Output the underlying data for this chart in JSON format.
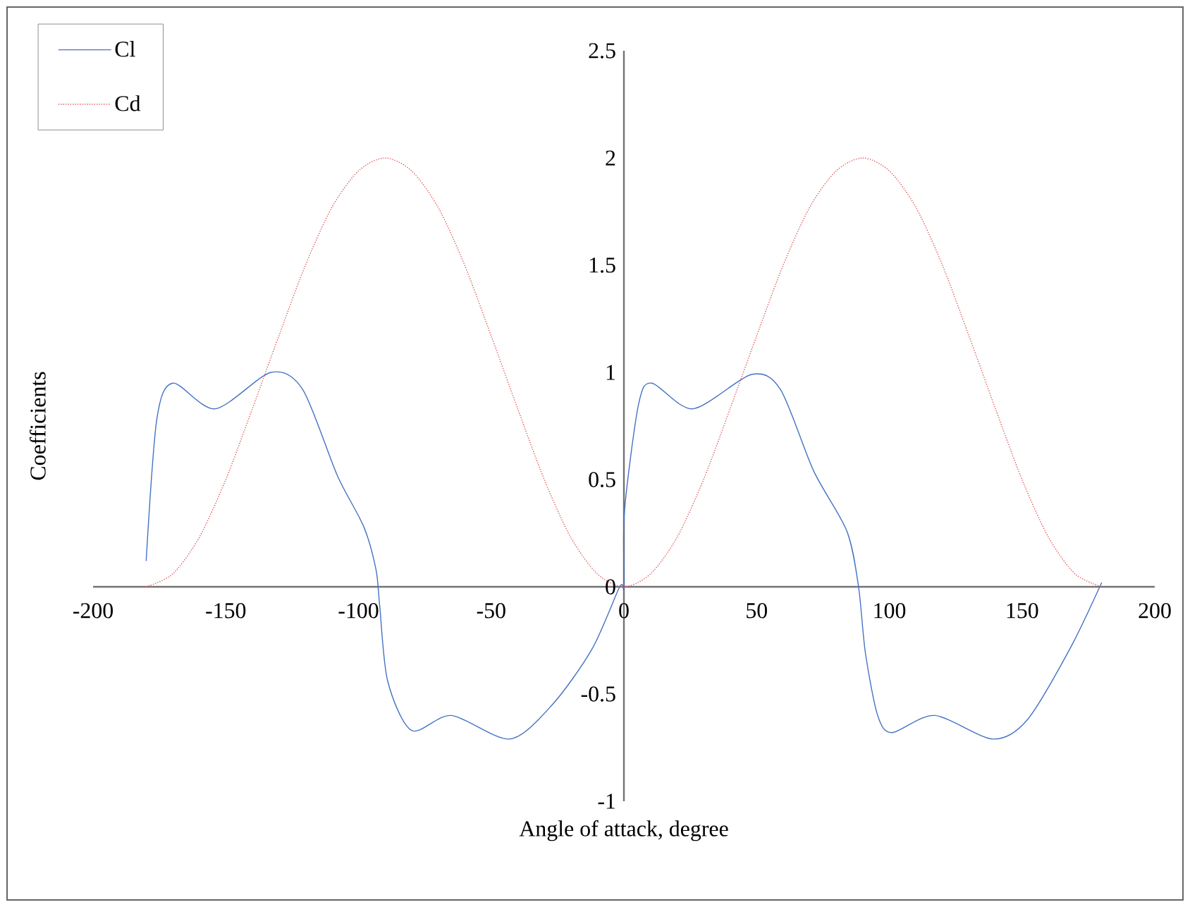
{
  "chart_data": {
    "type": "line",
    "xlabel": "Angle of attack, degree",
    "ylabel": "Coefficients",
    "xlim": [
      -200,
      200
    ],
    "ylim": [
      -1,
      2.5
    ],
    "xticks": [
      -200,
      -150,
      -100,
      -50,
      0,
      50,
      100,
      150,
      200
    ],
    "yticks": [
      -1,
      -0.5,
      0,
      0.5,
      1,
      1.5,
      2,
      2.5
    ],
    "legend": "top left",
    "series": [
      {
        "name": "Cl",
        "color": "#4472c4",
        "line_style": "solid",
        "x": [
          -180,
          -176,
          -170,
          -154,
          -133,
          -121,
          -108,
          -98,
          -93.4,
          -92,
          -89,
          -80,
          -65,
          -43,
          -27,
          -12,
          -1.6,
          0,
          0.2,
          5.5,
          10.5,
          26,
          48,
          59,
          71.5,
          84,
          88.4,
          91,
          95.6,
          101,
          117,
          139,
          152,
          168,
          180
        ],
        "values": [
          0.12,
          0.78,
          0.95,
          0.83,
          1.0,
          0.92,
          0.52,
          0.28,
          0.08,
          -0.09,
          -0.44,
          -0.67,
          -0.6,
          -0.71,
          -0.55,
          -0.29,
          0,
          0,
          0.35,
          0.85,
          0.95,
          0.83,
          0.99,
          0.92,
          0.54,
          0.26,
          0,
          -0.31,
          -0.6,
          -0.68,
          -0.6,
          -0.71,
          -0.62,
          -0.29,
          0.02
        ]
      },
      {
        "name": "Cd",
        "color": "#e05a5a",
        "line_style": "dotted",
        "x": [
          -180,
          -170,
          -160,
          -150,
          -140,
          -130,
          -120,
          -110,
          -100,
          -90,
          -80,
          -70,
          -60,
          -50,
          -40,
          -30,
          -20,
          -10,
          0,
          10,
          20,
          30,
          40,
          50,
          60,
          70,
          80,
          90,
          100,
          110,
          120,
          130,
          140,
          150,
          160,
          170,
          180
        ],
        "values": [
          0,
          0.06,
          0.23,
          0.5,
          0.83,
          1.17,
          1.5,
          1.77,
          1.94,
          2,
          1.94,
          1.77,
          1.5,
          1.17,
          0.83,
          0.5,
          0.23,
          0.06,
          0,
          0.06,
          0.23,
          0.5,
          0.83,
          1.17,
          1.5,
          1.77,
          1.94,
          2,
          1.94,
          1.77,
          1.5,
          1.17,
          0.83,
          0.5,
          0.23,
          0.06,
          0
        ]
      }
    ]
  }
}
